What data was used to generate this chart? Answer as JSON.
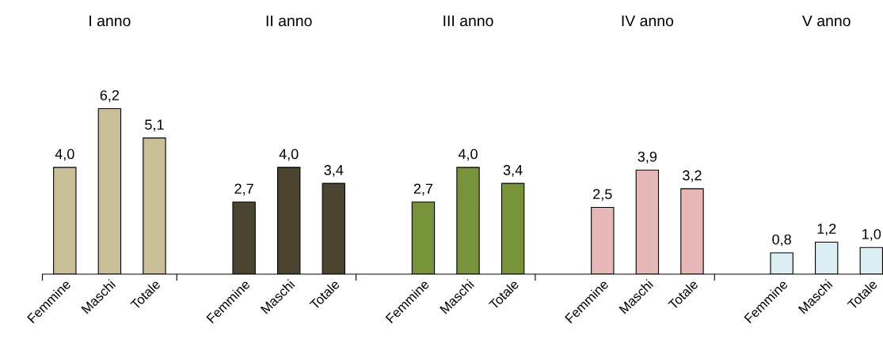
{
  "chart_data": {
    "type": "bar",
    "categories": [
      "Femmine",
      "Maschi",
      "Totale",
      null,
      "Femmine",
      "Maschi",
      "Totale",
      null,
      "Femmine",
      "Maschi",
      "Totale",
      null,
      "Femmine",
      "Maschi",
      "Totale",
      null,
      "Femmine",
      "Maschi",
      "Totale"
    ],
    "values": [
      4.0,
      6.2,
      5.1,
      null,
      2.7,
      4.0,
      3.4,
      null,
      2.7,
      4.0,
      3.4,
      null,
      2.5,
      3.9,
      3.2,
      null,
      0.8,
      1.2,
      1.0
    ],
    "value_labels": [
      "4,0",
      "6,2",
      "5,1",
      null,
      "2,7",
      "4,0",
      "3,4",
      null,
      "2,7",
      "4,0",
      "3,4",
      null,
      "2,5",
      "3,9",
      "3,2",
      null,
      "0,8",
      "1,2",
      "1,0"
    ],
    "colors": [
      "#c9bf98",
      "#c9bf98",
      "#c9bf98",
      null,
      "#4b4430",
      "#4b4430",
      "#4b4430",
      null,
      "#77933c",
      "#77933c",
      "#77933c",
      null,
      "#e6b9b8",
      "#e6b9b8",
      "#e6b9b8",
      null,
      "#dbeef4",
      "#dbeef4",
      "#dbeef4"
    ],
    "annotations": [
      "I anno",
      "II anno",
      "III anno",
      "IV anno",
      "V anno"
    ],
    "grid": false,
    "legend": false
  }
}
